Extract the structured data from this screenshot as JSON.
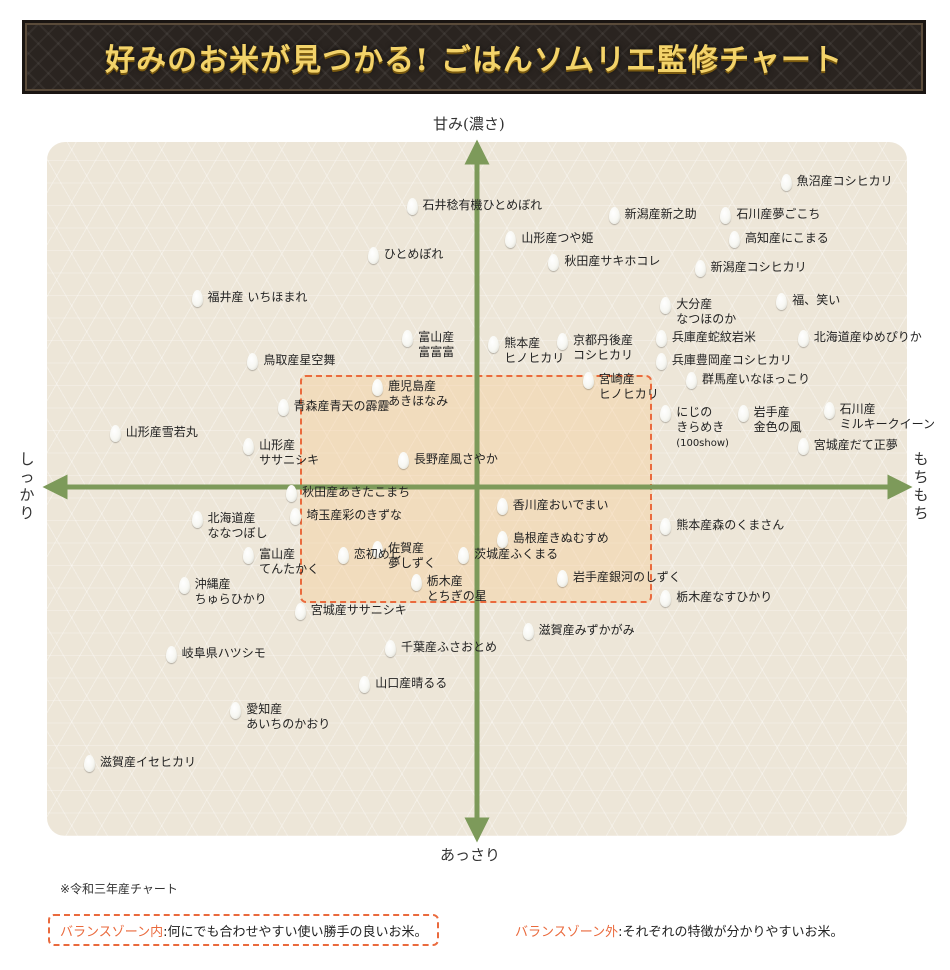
{
  "header": {
    "title": "好みのお米が見つかる! ごはんソムリエ監修チャート"
  },
  "chart_data": {
    "type": "scatter",
    "title": "好みのお米が見つかる! ごはんソムリエ監修チャート",
    "axes": {
      "top": "甘み(濃さ)",
      "bottom": "あっさり",
      "left": "しっかり",
      "right": "もちもち"
    },
    "xlim": [
      -10,
      10
    ],
    "ylim": [
      -10,
      10
    ],
    "balance_zone": {
      "x": [
        -4,
        4
      ],
      "y": [
        -3,
        3
      ],
      "label": "バランスゾーン内"
    },
    "points": [
      {
        "name": "魚沼産コシヒカリ",
        "x": 7.2,
        "y": 9.2
      },
      {
        "name": "石井稔有機ひとめぼれ",
        "x": -1.5,
        "y": 8.5
      },
      {
        "name": "新潟産新之助",
        "x": 3.2,
        "y": 8.2
      },
      {
        "name": "石川産夢ごこち",
        "x": 5.8,
        "y": 8.2
      },
      {
        "name": "山形産つや姫",
        "x": 0.8,
        "y": 7.5
      },
      {
        "name": "高知産にこまる",
        "x": 6.0,
        "y": 7.5
      },
      {
        "name": "ひとめぼれ",
        "x": -2.4,
        "y": 7.0
      },
      {
        "name": "秋田産サキホコレ",
        "x": 1.8,
        "y": 6.8
      },
      {
        "name": "新潟産コシヒカリ",
        "x": 5.2,
        "y": 6.6
      },
      {
        "name": "福井産 いちほまれ",
        "x": -6.5,
        "y": 5.7
      },
      {
        "name": "大分産",
        "sub": "なつほのか",
        "x": 4.4,
        "y": 5.5
      },
      {
        "name": "福、笑い",
        "x": 7.1,
        "y": 5.6
      },
      {
        "name": "富山産",
        "sub": "富富富",
        "x": -1.6,
        "y": 4.5
      },
      {
        "name": "熊本産",
        "sub": "ヒノヒカリ",
        "x": 0.4,
        "y": 4.3
      },
      {
        "name": "京都丹後産",
        "sub": "コシヒカリ",
        "x": 2.0,
        "y": 4.4
      },
      {
        "name": "兵庫産蛇紋岩米",
        "x": 4.3,
        "y": 4.5
      },
      {
        "name": "北海道産ゆめぴりか",
        "x": 7.6,
        "y": 4.5
      },
      {
        "name": "鳥取産星空舞",
        "x": -5.2,
        "y": 3.8
      },
      {
        "name": "兵庫豊岡産コシヒカリ",
        "x": 4.3,
        "y": 3.8
      },
      {
        "name": "鹿児島産",
        "sub": "あきほなみ",
        "x": -2.3,
        "y": 3.0
      },
      {
        "name": "宮崎産",
        "sub": "ヒノヒカリ",
        "x": 2.6,
        "y": 3.2
      },
      {
        "name": "群馬産いなほっこり",
        "x": 5.0,
        "y": 3.2
      },
      {
        "name": "青森産青天の霹靂",
        "x": -4.5,
        "y": 2.4
      },
      {
        "name": "にじの",
        "sub": "きらめき",
        "note": "(100show)",
        "x": 4.4,
        "y": 2.2
      },
      {
        "name": "岩手産",
        "sub": "金色の風",
        "x": 6.2,
        "y": 2.2
      },
      {
        "name": "石川産",
        "sub": "ミルキークイーン",
        "x": 8.2,
        "y": 2.3
      },
      {
        "name": "山形産雪若丸",
        "x": -8.4,
        "y": 1.6
      },
      {
        "name": "山形産",
        "sub": "ササニシキ",
        "x": -5.3,
        "y": 1.2
      },
      {
        "name": "長野産風さやか",
        "x": -1.7,
        "y": 0.8
      },
      {
        "name": "宮城産だて正夢",
        "x": 7.6,
        "y": 1.2
      },
      {
        "name": "秋田産あきたこまち",
        "x": -4.3,
        "y": -0.2
      },
      {
        "name": "香川産おいでまい",
        "x": 0.6,
        "y": -0.6
      },
      {
        "name": "北海道産",
        "sub": "ななつぼし",
        "x": -6.5,
        "y": -1.0
      },
      {
        "name": "埼玉産彩のきずな",
        "x": -4.2,
        "y": -0.9
      },
      {
        "name": "熊本産森のくまさん",
        "x": 4.4,
        "y": -1.2
      },
      {
        "name": "島根産きぬむすめ",
        "x": 0.6,
        "y": -1.6
      },
      {
        "name": "佐賀産",
        "sub": "夢しずく",
        "x": -2.3,
        "y": -1.9
      },
      {
        "name": "富山産",
        "sub": "てんたかく",
        "x": -5.3,
        "y": -2.1
      },
      {
        "name": "恋初めし",
        "x": -3.1,
        "y": -2.1
      },
      {
        "name": "茨城産ふくまる",
        "x": -0.3,
        "y": -2.1
      },
      {
        "name": "沖縄産",
        "sub": "ちゅらひかり",
        "x": -6.8,
        "y": -3.0
      },
      {
        "name": "栃木産",
        "sub": "とちぎの星",
        "x": -1.4,
        "y": -2.9
      },
      {
        "name": "岩手産銀河のしずく",
        "x": 2.0,
        "y": -2.8
      },
      {
        "name": "栃木産なすひかり",
        "x": 4.4,
        "y": -3.4
      },
      {
        "name": "宮城産ササニシキ",
        "x": -4.1,
        "y": -3.8
      },
      {
        "name": "滋賀産みずかがみ",
        "x": 1.2,
        "y": -4.4
      },
      {
        "name": "千葉産ふさおとめ",
        "x": -2.0,
        "y": -4.9
      },
      {
        "name": "岐阜県ハツシモ",
        "x": -7.1,
        "y": -5.1
      },
      {
        "name": "山口産晴るる",
        "x": -2.6,
        "y": -6.0,
        "label_fix": true
      },
      {
        "name": "愛知産",
        "sub": "あいちのかおり",
        "x": -5.6,
        "y": -6.8,
        "highlight": true
      },
      {
        "name": "滋賀産イセヒカリ",
        "x": -9.0,
        "y": -8.4
      }
    ]
  },
  "footnote": "※令和三年産チャート",
  "legend": {
    "inside_key": "バランスゾーン内",
    "inside_text": ":何にでも合わせやすい使い勝手の良いお米。",
    "outside_key": "バランスゾーン外",
    "outside_text": ":それぞれの特徴が分かりやすいお米。"
  }
}
